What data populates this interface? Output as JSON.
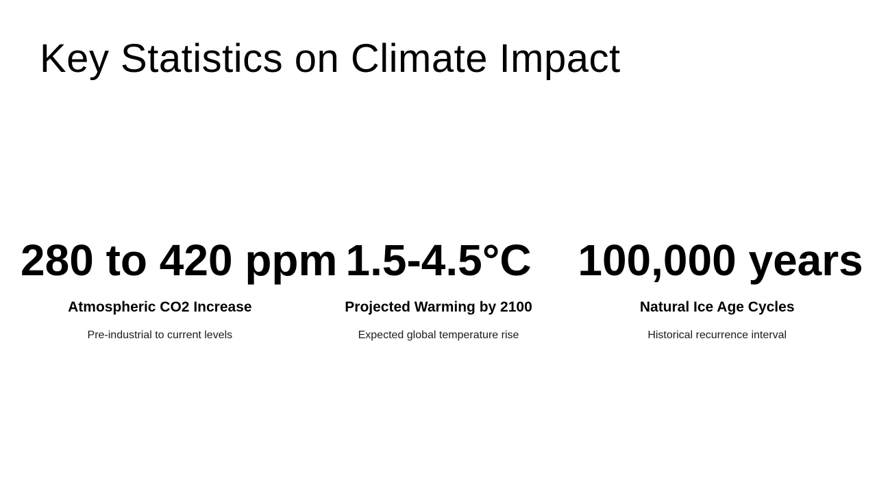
{
  "slide": {
    "title": "Key Statistics on Climate Impact",
    "stats": [
      {
        "value": "280 to 420 ppm",
        "label": "Atmospheric CO2 Increase",
        "description": "Pre-industrial to current levels"
      },
      {
        "value": "1.5-4.5°C",
        "label": "Projected Warming by 2100",
        "description": "Expected global temperature rise"
      },
      {
        "value": "100,000 years",
        "label": "Natural Ice Age Cycles",
        "description": "Historical recurrence interval"
      }
    ],
    "colors": {
      "background": "#ffffff",
      "heading_text": "#000000",
      "description_text": "#1a1a1a"
    }
  }
}
